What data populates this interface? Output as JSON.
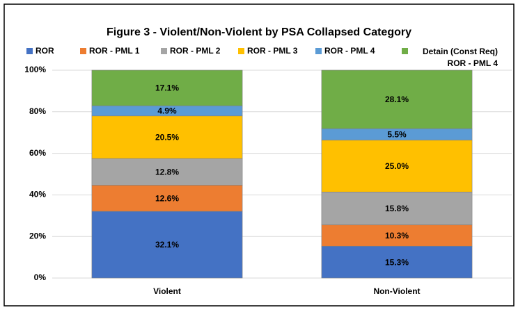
{
  "chart_data": {
    "type": "stacked_bar",
    "title": "Figure 3 - Violent/Non-Violent by PSA Collapsed Category",
    "categories": [
      "Violent",
      "Non-Violent"
    ],
    "series": [
      {
        "name": "ROR",
        "color": "#4472c4",
        "values": [
          32.1,
          15.3
        ],
        "value_labels": [
          "32.1%",
          "15.3%"
        ]
      },
      {
        "name": "ROR - PML 1",
        "color": "#ed7d31",
        "values": [
          12.6,
          10.3
        ],
        "value_labels": [
          "12.6%",
          "10.3%"
        ]
      },
      {
        "name": "ROR - PML 2",
        "color": "#a5a5a5",
        "values": [
          12.8,
          15.8
        ],
        "value_labels": [
          "12.8%",
          "15.8%"
        ]
      },
      {
        "name": "ROR - PML 3",
        "color": "#ffc000",
        "values": [
          20.5,
          25.0
        ],
        "value_labels": [
          "20.5%",
          "25.0%"
        ]
      },
      {
        "name": "ROR - PML 4",
        "color": "#5b9bd5",
        "values": [
          4.9,
          5.5
        ],
        "value_labels": [
          "4.9%",
          "5.5%"
        ]
      },
      {
        "name": "Detain (Const Req) ROR - PML 4",
        "color": "#70ad47",
        "values": [
          17.1,
          28.1
        ],
        "value_labels": [
          "17.1%",
          "28.1%"
        ]
      }
    ],
    "ylim": [
      0,
      100
    ],
    "yticks": [
      {
        "value": 0,
        "label": "0%"
      },
      {
        "value": 20,
        "label": "20%"
      },
      {
        "value": 40,
        "label": "40%"
      },
      {
        "value": 60,
        "label": "60%"
      },
      {
        "value": 80,
        "label": "80%"
      },
      {
        "value": 100,
        "label": "100%"
      }
    ],
    "grid": true,
    "legend": "top"
  }
}
